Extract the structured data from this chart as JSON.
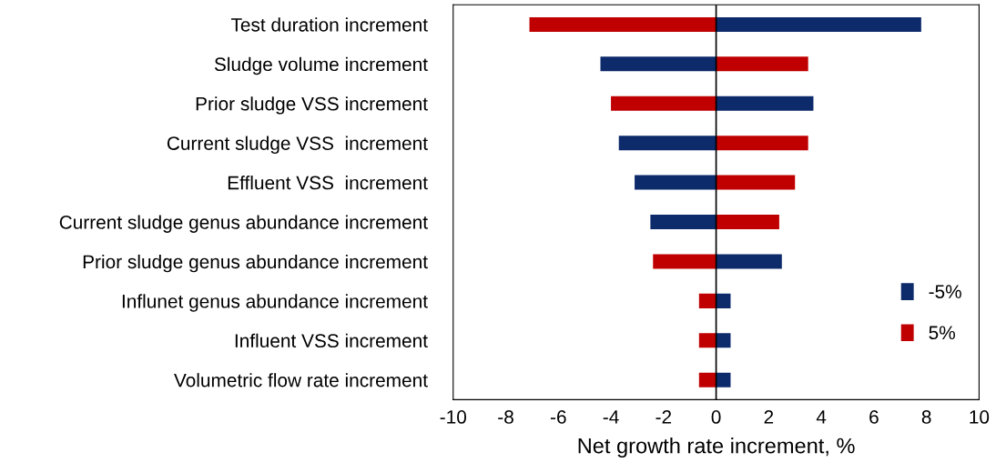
{
  "chart_data": {
    "type": "bar",
    "orientation": "horizontal",
    "xlabel": "Net growth rate increment, %",
    "categories": [
      "Test duration increment",
      "Sludge volume increment",
      "Prior sludge VSS increment",
      "Current sludge VSS  increment",
      "Effluent VSS  increment",
      "Current sludge genus abundance increment",
      "Prior sludge genus abundance increment",
      "Influnet genus abundance increment",
      "Influent VSS increment",
      "Volumetric flow rate increment"
    ],
    "series": [
      {
        "name": "-5%",
        "color": "#0d2a6b",
        "values": [
          7.8,
          -4.4,
          3.7,
          -3.7,
          -3.1,
          -2.5,
          2.5,
          0.55,
          0.55,
          0.55
        ]
      },
      {
        "name": "5%",
        "color": "#c00000",
        "values": [
          -7.1,
          3.5,
          -4.0,
          3.5,
          3.0,
          2.4,
          -2.4,
          -0.65,
          -0.65,
          -0.65
        ]
      }
    ],
    "xlim": [
      -10,
      10
    ],
    "xticks": [
      -10,
      -8,
      -6,
      -4,
      -2,
      0,
      2,
      4,
      6,
      8,
      10
    ],
    "grid": false,
    "stacked": true,
    "ref_lines": [
      {
        "axis": "x",
        "value": 0,
        "color": "#000000"
      }
    ],
    "legend": "bottom right"
  }
}
